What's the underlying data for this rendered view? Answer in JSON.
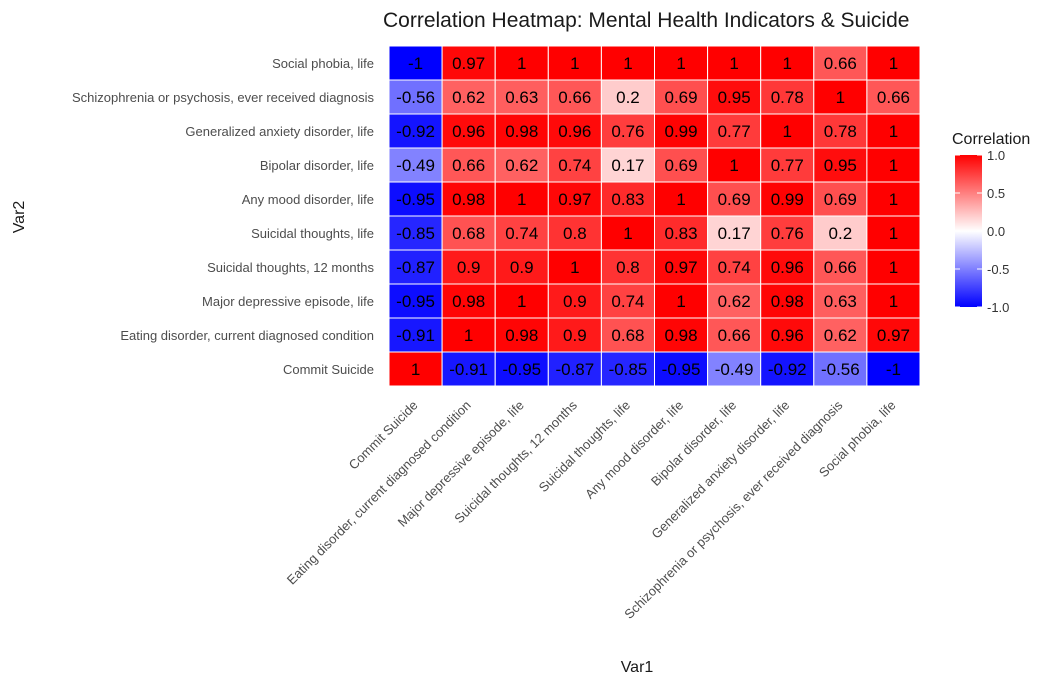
{
  "chart_data": {
    "type": "heatmap",
    "title": "Correlation Heatmap: Mental Health Indicators & Suicide",
    "xlabel": "Var1",
    "ylabel": "Var2",
    "x_categories": [
      "Commit Suicide",
      "Eating disorder, current diagnosed condition",
      "Major depressive episode, life",
      "Suicidal thoughts, 12 months",
      "Suicidal thoughts, life",
      "Any mood disorder, life",
      "Bipolar disorder, life",
      "Generalized anxiety disorder, life",
      "Schizophrenia or psychosis, ever received diagnosis",
      "Social phobia, life"
    ],
    "y_categories_top_to_bottom": [
      "Social phobia, life",
      "Schizophrenia or psychosis, ever received diagnosis",
      "Generalized anxiety disorder, life",
      "Bipolar disorder, life",
      "Any mood disorder, life",
      "Suicidal thoughts, life",
      "Suicidal thoughts, 12 months",
      "Major depressive episode, life",
      "Eating disorder, current diagnosed condition",
      "Commit Suicide"
    ],
    "values": [
      [
        "-1",
        "0.97",
        "1",
        "1",
        "1",
        "1",
        "1",
        "1",
        "0.66",
        "1"
      ],
      [
        "-0.56",
        "0.62",
        "0.63",
        "0.66",
        "0.2",
        "0.69",
        "0.95",
        "0.78",
        "1",
        "0.66"
      ],
      [
        "-0.92",
        "0.96",
        "0.98",
        "0.96",
        "0.76",
        "0.99",
        "0.77",
        "1",
        "0.78",
        "1"
      ],
      [
        "-0.49",
        "0.66",
        "0.62",
        "0.74",
        "0.17",
        "0.69",
        "1",
        "0.77",
        "0.95",
        "1"
      ],
      [
        "-0.95",
        "0.98",
        "1",
        "0.97",
        "0.83",
        "1",
        "0.69",
        "0.99",
        "0.69",
        "1"
      ],
      [
        "-0.85",
        "0.68",
        "0.74",
        "0.8",
        "1",
        "0.83",
        "0.17",
        "0.76",
        "0.2",
        "1"
      ],
      [
        "-0.87",
        "0.9",
        "0.9",
        "1",
        "0.8",
        "0.97",
        "0.74",
        "0.96",
        "0.66",
        "1"
      ],
      [
        "-0.95",
        "0.98",
        "1",
        "0.9",
        "0.74",
        "1",
        "0.62",
        "0.98",
        "0.63",
        "1"
      ],
      [
        "-0.91",
        "1",
        "0.98",
        "0.9",
        "0.68",
        "0.98",
        "0.66",
        "0.96",
        "0.62",
        "0.97"
      ],
      [
        "1",
        "-0.91",
        "-0.95",
        "-0.87",
        "-0.85",
        "-0.95",
        "-0.49",
        "-0.92",
        "-0.56",
        "-1"
      ]
    ],
    "color_scale": {
      "low": "#0000ff",
      "mid": "#ffffff",
      "high": "#ff0000",
      "limits": [
        -1,
        1
      ]
    },
    "legend": {
      "title": "Correlation",
      "ticks": [
        "1.0",
        "0.5",
        "0.0",
        "-0.5",
        "-1.0"
      ],
      "tick_values": [
        1,
        0.5,
        0,
        -0.5,
        -1
      ],
      "placement": "right"
    },
    "grid": false
  }
}
